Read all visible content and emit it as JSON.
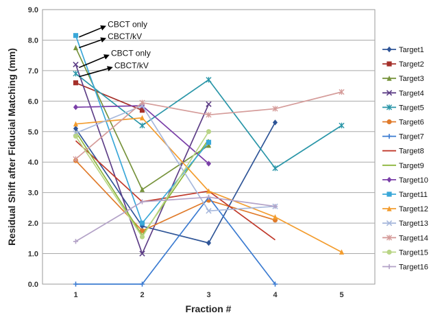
{
  "chart_data": {
    "type": "line",
    "xlabel": "Fraction #",
    "ylabel": "Residual Shift after Fiducial Matching (mm)",
    "x_ticks": [
      1,
      2,
      3,
      4,
      5
    ],
    "y_ticks": [
      "0.0",
      "1.0",
      "2.0",
      "3.0",
      "4.0",
      "5.0",
      "6.0",
      "7.0",
      "8.0",
      "9.0"
    ],
    "xlim": [
      0.5,
      5.5
    ],
    "ylim": [
      0,
      9
    ],
    "grid": "horizontal",
    "legend": "right",
    "series": [
      {
        "name": "Target1",
        "color": "#2F5597",
        "marker": "diamond",
        "points": [
          [
            1,
            5.1
          ],
          [
            2,
            1.9
          ],
          [
            3,
            1.35
          ],
          [
            4,
            5.3
          ]
        ]
      },
      {
        "name": "Target2",
        "color": "#A5302A",
        "marker": "square",
        "points": [
          [
            1,
            6.6
          ],
          [
            2,
            5.7
          ]
        ]
      },
      {
        "name": "Target3",
        "color": "#77933C",
        "marker": "triangle",
        "points": [
          [
            1,
            7.75
          ],
          [
            2,
            3.1
          ],
          [
            3,
            4.55
          ]
        ]
      },
      {
        "name": "Target4",
        "color": "#5E3F87",
        "marker": "x",
        "points": [
          [
            1,
            7.2
          ],
          [
            2,
            1.0
          ],
          [
            3,
            5.9
          ]
        ]
      },
      {
        "name": "Target5",
        "color": "#2A96A8",
        "marker": "star",
        "points": [
          [
            1,
            6.9
          ],
          [
            2,
            5.2
          ],
          [
            3,
            6.7
          ],
          [
            4,
            3.8
          ],
          [
            5,
            5.2
          ]
        ]
      },
      {
        "name": "Target6",
        "color": "#E07B2B",
        "marker": "circle",
        "points": [
          [
            1,
            4.05
          ],
          [
            2,
            1.75
          ],
          [
            3,
            2.75
          ],
          [
            4,
            2.1
          ]
        ]
      },
      {
        "name": "Target7",
        "color": "#3B7BD1",
        "marker": "plus",
        "points": [
          [
            1,
            0
          ],
          [
            2,
            0
          ],
          [
            3,
            2.85
          ],
          [
            4,
            0
          ]
        ]
      },
      {
        "name": "Target8",
        "color": "#C0392B",
        "marker": "none",
        "points": [
          [
            1,
            4.7
          ],
          [
            2,
            2.7
          ],
          [
            3,
            3.05
          ],
          [
            4,
            1.45
          ]
        ]
      },
      {
        "name": "Target9",
        "color": "#8DB63C",
        "marker": "none",
        "points": [
          [
            1,
            5.0
          ],
          [
            2,
            1.6
          ],
          [
            3,
            4.75
          ]
        ]
      },
      {
        "name": "Target10",
        "color": "#7A3FA8",
        "marker": "diamond",
        "points": [
          [
            1,
            5.8
          ],
          [
            2,
            5.85
          ],
          [
            3,
            3.95
          ]
        ]
      },
      {
        "name": "Target11",
        "color": "#3AA7D8",
        "marker": "square",
        "points": [
          [
            1,
            8.15
          ],
          [
            2,
            2.0
          ],
          [
            3,
            4.65
          ]
        ]
      },
      {
        "name": "Target12",
        "color": "#F39C2D",
        "marker": "triangle",
        "points": [
          [
            1,
            5.25
          ],
          [
            2,
            5.45
          ],
          [
            3,
            3.05
          ],
          [
            4,
            2.2
          ],
          [
            5,
            1.05
          ]
        ]
      },
      {
        "name": "Target13",
        "color": "#A7B8DC",
        "marker": "x",
        "points": [
          [
            1,
            4.95
          ],
          [
            2,
            5.85
          ],
          [
            3,
            2.4
          ],
          [
            4,
            2.55
          ]
        ]
      },
      {
        "name": "Target14",
        "color": "#D59C9A",
        "marker": "star",
        "points": [
          [
            1,
            4.1
          ],
          [
            2,
            5.95
          ],
          [
            3,
            5.55
          ],
          [
            4,
            5.75
          ],
          [
            5,
            6.3
          ]
        ]
      },
      {
        "name": "Target15",
        "color": "#B9D586",
        "marker": "circle",
        "points": [
          [
            1,
            4.85
          ],
          [
            2,
            1.55
          ],
          [
            3,
            5.0
          ]
        ]
      },
      {
        "name": "Target16",
        "color": "#B3A2C7",
        "marker": "plus",
        "points": [
          [
            1,
            1.4
          ],
          [
            2,
            2.7
          ],
          [
            3,
            2.85
          ],
          [
            4,
            2.55
          ]
        ]
      }
    ],
    "annotations": [
      {
        "text": "CBCT only",
        "from": [
          1.05,
          8.1
        ],
        "to": [
          1.44,
          8.45
        ]
      },
      {
        "text": "CBCT/kV",
        "from": [
          1.05,
          7.75
        ],
        "to": [
          1.44,
          8.05
        ]
      },
      {
        "text": "CBCT only",
        "from": [
          1.05,
          7.1
        ],
        "to": [
          1.49,
          7.5
        ]
      },
      {
        "text": "CBCT/kV",
        "from": [
          1.05,
          6.8
        ],
        "to": [
          1.54,
          7.1
        ]
      }
    ]
  }
}
